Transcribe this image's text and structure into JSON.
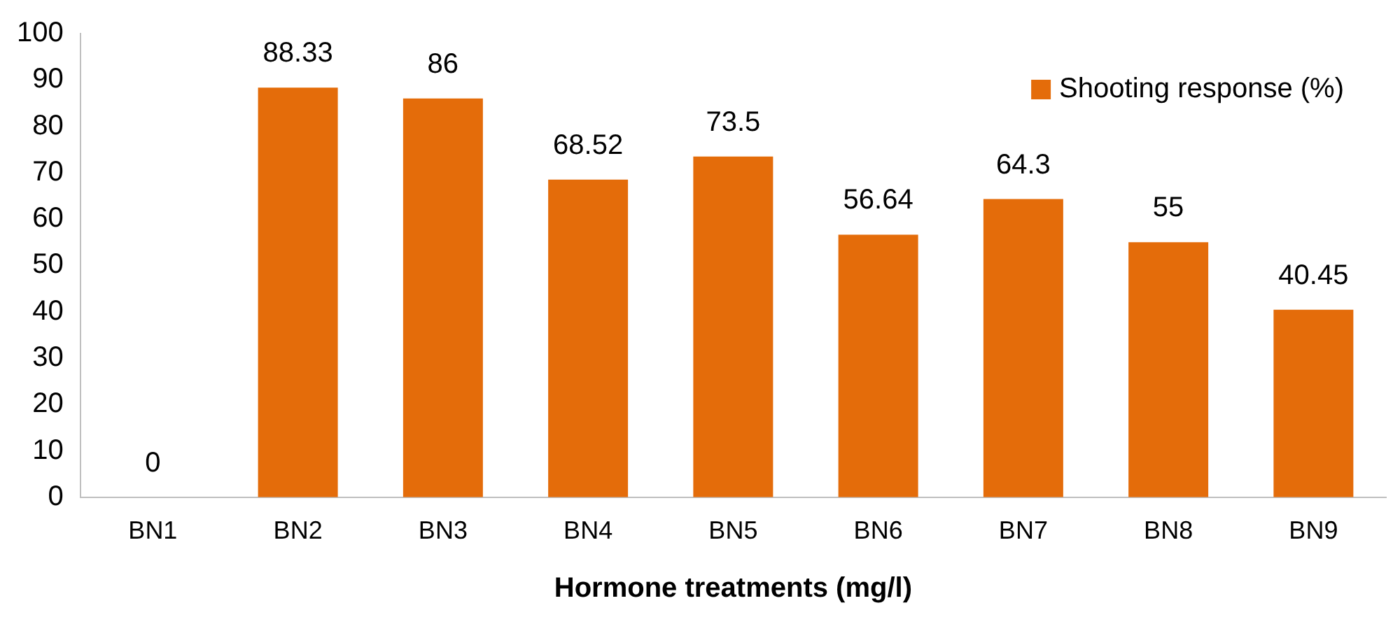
{
  "chart_data": {
    "type": "bar",
    "xlabel": "Hormone treatments (mg/l)",
    "categories": [
      "BN1",
      "BN2",
      "BN3",
      "BN4",
      "BN5",
      "BN6",
      "BN7",
      "BN8",
      "BN9"
    ],
    "series": [
      {
        "name": "Shooting response (%)",
        "color": "#e46c0a",
        "values": [
          0,
          88.33,
          86,
          68.52,
          73.5,
          56.64,
          64.3,
          55,
          40.45
        ]
      }
    ],
    "ylim": [
      0,
      100
    ],
    "yticks": [
      0,
      10,
      20,
      30,
      40,
      50,
      60,
      70,
      80,
      90,
      100
    ],
    "grid": false,
    "legend": "top right",
    "data_labels": true
  }
}
